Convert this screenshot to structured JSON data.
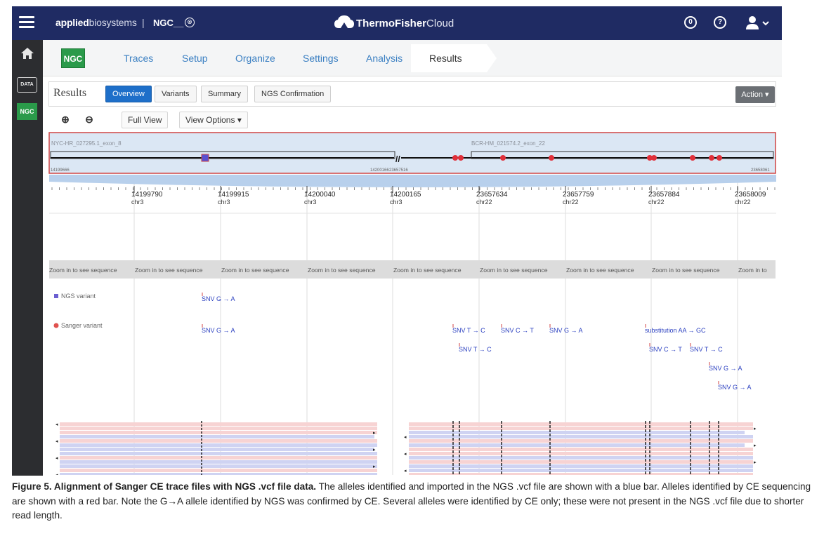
{
  "topbar": {
    "brand_bold": "applied",
    "brand_thin": "biosystems",
    "separator": "|",
    "project": "NGC__",
    "project_close": "⊗",
    "cloud_bold": "ThermoFisher",
    "cloud_light": "Cloud",
    "notify_glyph": "0",
    "help_glyph": "?"
  },
  "rail": {
    "data_label": "DATA",
    "ngc_label": "NGC"
  },
  "workflow": {
    "badge": "NGC",
    "tabs": [
      "Traces",
      "Setup",
      "Organize",
      "Settings",
      "Analysis"
    ],
    "active_tab": "Results"
  },
  "results": {
    "title": "Results",
    "tabs": [
      "Overview",
      "Variants",
      "Summary",
      "NGS Confirmation"
    ],
    "action": "Action ▾"
  },
  "toolbar": {
    "zoom_in": "⊕",
    "zoom_out": "⊖",
    "full_view": "Full View",
    "view_options": "View Options ▾"
  },
  "overview": {
    "left_label": "NYC-HR_027295.1_exon_8",
    "right_label": "BCR-HM_021574.2_exon_22",
    "left_start": "14199666",
    "left_end": "14200166",
    "right_start": "23657516",
    "right_end": "23658061"
  },
  "ruler": [
    {
      "pos": "14199790",
      "chr": "chr3"
    },
    {
      "pos": "14199915",
      "chr": "chr3"
    },
    {
      "pos": "14200040",
      "chr": "chr3"
    },
    {
      "pos": "14200165",
      "chr": "chr3"
    },
    {
      "pos": "23657634",
      "chr": "chr22"
    },
    {
      "pos": "23657759",
      "chr": "chr22"
    },
    {
      "pos": "23657884",
      "chr": "chr22"
    },
    {
      "pos": "23658009",
      "chr": "chr22"
    }
  ],
  "sequence_hint": "Zoom in to see sequence",
  "sequence_hint_partial": "Zoom in to",
  "legend": {
    "ngs": "NGS variant",
    "sanger": "Sanger variant",
    "ngs_color": "#6b5fd1",
    "sanger_color": "#e0524f"
  },
  "variants": {
    "ngs": [
      "SNV G → A"
    ],
    "sanger": [
      "SNV G → A",
      "SNV T → C",
      "SNV C → T",
      "SNV G → A",
      "substitution AA → GC",
      "SNV T → C",
      "SNV C → T",
      "SNV T → C",
      "SNV G → A",
      "SNV G → A"
    ]
  },
  "colors": {
    "topbar": "#1f2b63",
    "accent_blue": "#1e6fc9",
    "ngc_green": "#2a9a4a",
    "read_red": "#f7d3d3",
    "read_blue": "#cfd3f2"
  },
  "caption": {
    "bold": "Figure 5. Alignment of Sanger CE trace files with NGS .vcf file data.",
    "text": " The alleles identified and imported in the NGS .vcf file are shown with a blue bar. Alleles identified by CE sequencing are shown with a red bar. Note the G→A allele identified by NGS was confirmed by CE. Several alleles were identified by CE only; these were not present in the NGS .vcf file due to shorter read length."
  }
}
